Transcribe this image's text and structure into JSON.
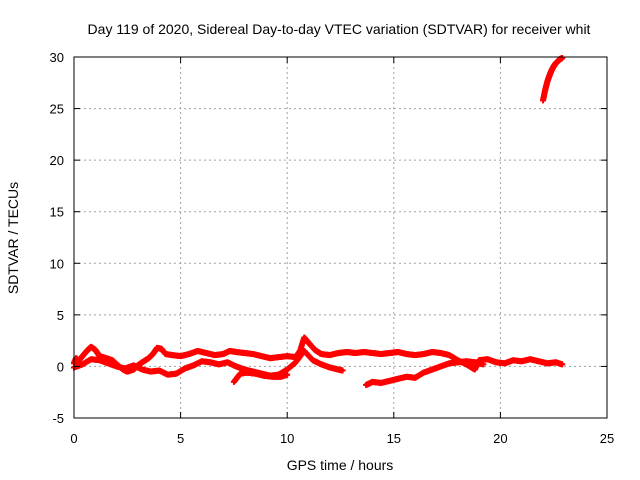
{
  "chart_data": {
    "type": "scatter",
    "title": "Day 119 of 2020, Sidereal Day-to-day VTEC variation (SDTVAR) for receiver whit",
    "xlabel": "GPS time / hours",
    "ylabel": "SDTVAR / TECUs",
    "xlim": [
      0,
      25
    ],
    "ylim": [
      -5,
      30
    ],
    "xticks": [
      "0",
      "5",
      "10",
      "15",
      "20",
      "25"
    ],
    "yticks": [
      "-5",
      "0",
      "5",
      "10",
      "15",
      "20",
      "25",
      "30"
    ],
    "grid": true,
    "legend": "none",
    "marker": "+",
    "series": [
      {
        "color": "#ff0000",
        "points": [
          [
            0.0,
            0.3
          ],
          [
            0.1,
            0.8
          ],
          [
            0.2,
            0.5
          ],
          [
            0.4,
            1.0
          ],
          [
            0.6,
            1.5
          ],
          [
            0.8,
            1.9
          ],
          [
            1.0,
            1.6
          ],
          [
            1.2,
            1.0
          ],
          [
            1.5,
            0.8
          ],
          [
            1.8,
            0.6
          ],
          [
            2.0,
            0.2
          ],
          [
            2.3,
            -0.3
          ],
          [
            2.5,
            -0.5
          ],
          [
            2.8,
            -0.3
          ],
          [
            3.0,
            0.1
          ],
          [
            3.2,
            0.4
          ],
          [
            3.5,
            0.8
          ],
          [
            3.7,
            1.2
          ],
          [
            3.9,
            1.8
          ],
          [
            4.1,
            1.7
          ],
          [
            4.3,
            1.2
          ],
          [
            4.6,
            1.1
          ],
          [
            5.0,
            1.0
          ],
          [
            5.4,
            1.2
          ],
          [
            5.8,
            1.5
          ],
          [
            6.2,
            1.3
          ],
          [
            6.6,
            1.1
          ],
          [
            7.0,
            1.2
          ],
          [
            7.3,
            1.5
          ],
          [
            7.6,
            1.4
          ],
          [
            8.0,
            1.3
          ],
          [
            8.4,
            1.2
          ],
          [
            8.8,
            1.0
          ],
          [
            9.2,
            0.8
          ],
          [
            9.6,
            0.9
          ],
          [
            10.0,
            1.0
          ],
          [
            10.4,
            0.9
          ],
          [
            10.6,
            1.5
          ],
          [
            10.8,
            2.8
          ],
          [
            11.0,
            2.3
          ],
          [
            11.3,
            1.6
          ],
          [
            11.6,
            1.2
          ],
          [
            12.0,
            1.1
          ],
          [
            12.4,
            1.3
          ],
          [
            12.8,
            1.4
          ],
          [
            13.2,
            1.3
          ],
          [
            13.6,
            1.4
          ],
          [
            14.0,
            1.3
          ],
          [
            14.4,
            1.2
          ],
          [
            14.8,
            1.3
          ],
          [
            15.2,
            1.4
          ],
          [
            15.6,
            1.2
          ],
          [
            16.0,
            1.1
          ],
          [
            16.4,
            1.2
          ],
          [
            16.8,
            1.4
          ],
          [
            17.2,
            1.3
          ],
          [
            17.6,
            1.1
          ],
          [
            18.0,
            0.6
          ],
          [
            18.4,
            0.2
          ],
          [
            18.8,
            -0.3
          ],
          [
            19.0,
            0.6
          ],
          [
            19.4,
            0.7
          ],
          [
            19.8,
            0.4
          ],
          [
            20.2,
            0.3
          ],
          [
            20.6,
            0.6
          ],
          [
            21.0,
            0.5
          ],
          [
            21.4,
            0.7
          ],
          [
            21.8,
            0.5
          ],
          [
            22.2,
            0.3
          ],
          [
            22.6,
            0.4
          ],
          [
            22.9,
            0.2
          ]
        ]
      },
      {
        "color": "#ff0000",
        "points": [
          [
            0.0,
            -0.1
          ],
          [
            0.4,
            0.2
          ],
          [
            0.8,
            0.7
          ],
          [
            1.2,
            0.6
          ],
          [
            1.6,
            0.3
          ],
          [
            2.0,
            0.0
          ],
          [
            2.4,
            -0.2
          ],
          [
            2.8,
            0.1
          ],
          [
            3.2,
            -0.3
          ],
          [
            3.6,
            -0.5
          ],
          [
            4.0,
            -0.4
          ],
          [
            4.4,
            -0.8
          ],
          [
            4.8,
            -0.7
          ],
          [
            5.2,
            -0.2
          ],
          [
            5.6,
            0.1
          ],
          [
            6.0,
            0.5
          ],
          [
            6.4,
            0.4
          ],
          [
            6.8,
            0.2
          ],
          [
            7.2,
            0.4
          ],
          [
            7.6,
            0.0
          ],
          [
            8.0,
            -0.3
          ],
          [
            8.4,
            -0.5
          ],
          [
            8.8,
            -0.7
          ],
          [
            9.2,
            -0.9
          ],
          [
            9.6,
            -0.8
          ],
          [
            10.0,
            -0.3
          ],
          [
            10.4,
            0.4
          ],
          [
            10.8,
            1.5
          ],
          [
            11.2,
            0.6
          ],
          [
            11.6,
            0.2
          ],
          [
            12.0,
            -0.1
          ],
          [
            12.4,
            -0.3
          ],
          [
            12.6,
            -0.4
          ]
        ]
      },
      {
        "color": "#ff0000",
        "points": [
          [
            7.5,
            -1.5
          ],
          [
            7.8,
            -0.7
          ],
          [
            8.1,
            -0.6
          ],
          [
            8.5,
            -0.7
          ],
          [
            8.9,
            -0.9
          ],
          [
            9.3,
            -1.0
          ],
          [
            9.7,
            -1.0
          ],
          [
            10.0,
            -0.8
          ]
        ]
      },
      {
        "color": "#ff0000",
        "points": [
          [
            13.7,
            -1.8
          ],
          [
            14.0,
            -1.5
          ],
          [
            14.4,
            -1.6
          ],
          [
            14.8,
            -1.4
          ],
          [
            15.2,
            -1.2
          ],
          [
            15.6,
            -1.0
          ],
          [
            16.0,
            -1.1
          ],
          [
            16.4,
            -0.6
          ],
          [
            16.8,
            -0.3
          ],
          [
            17.2,
            0.0
          ],
          [
            17.6,
            0.3
          ],
          [
            18.0,
            0.4
          ],
          [
            18.4,
            0.5
          ],
          [
            18.8,
            0.4
          ],
          [
            19.2,
            0.2
          ]
        ]
      },
      {
        "color": "#ff0000",
        "points": [
          [
            22.0,
            25.8
          ],
          [
            22.1,
            26.8
          ],
          [
            22.2,
            27.6
          ],
          [
            22.3,
            28.2
          ],
          [
            22.4,
            28.7
          ],
          [
            22.5,
            29.1
          ],
          [
            22.6,
            29.4
          ],
          [
            22.7,
            29.6
          ],
          [
            22.8,
            29.8
          ],
          [
            22.9,
            29.9
          ]
        ]
      }
    ]
  }
}
